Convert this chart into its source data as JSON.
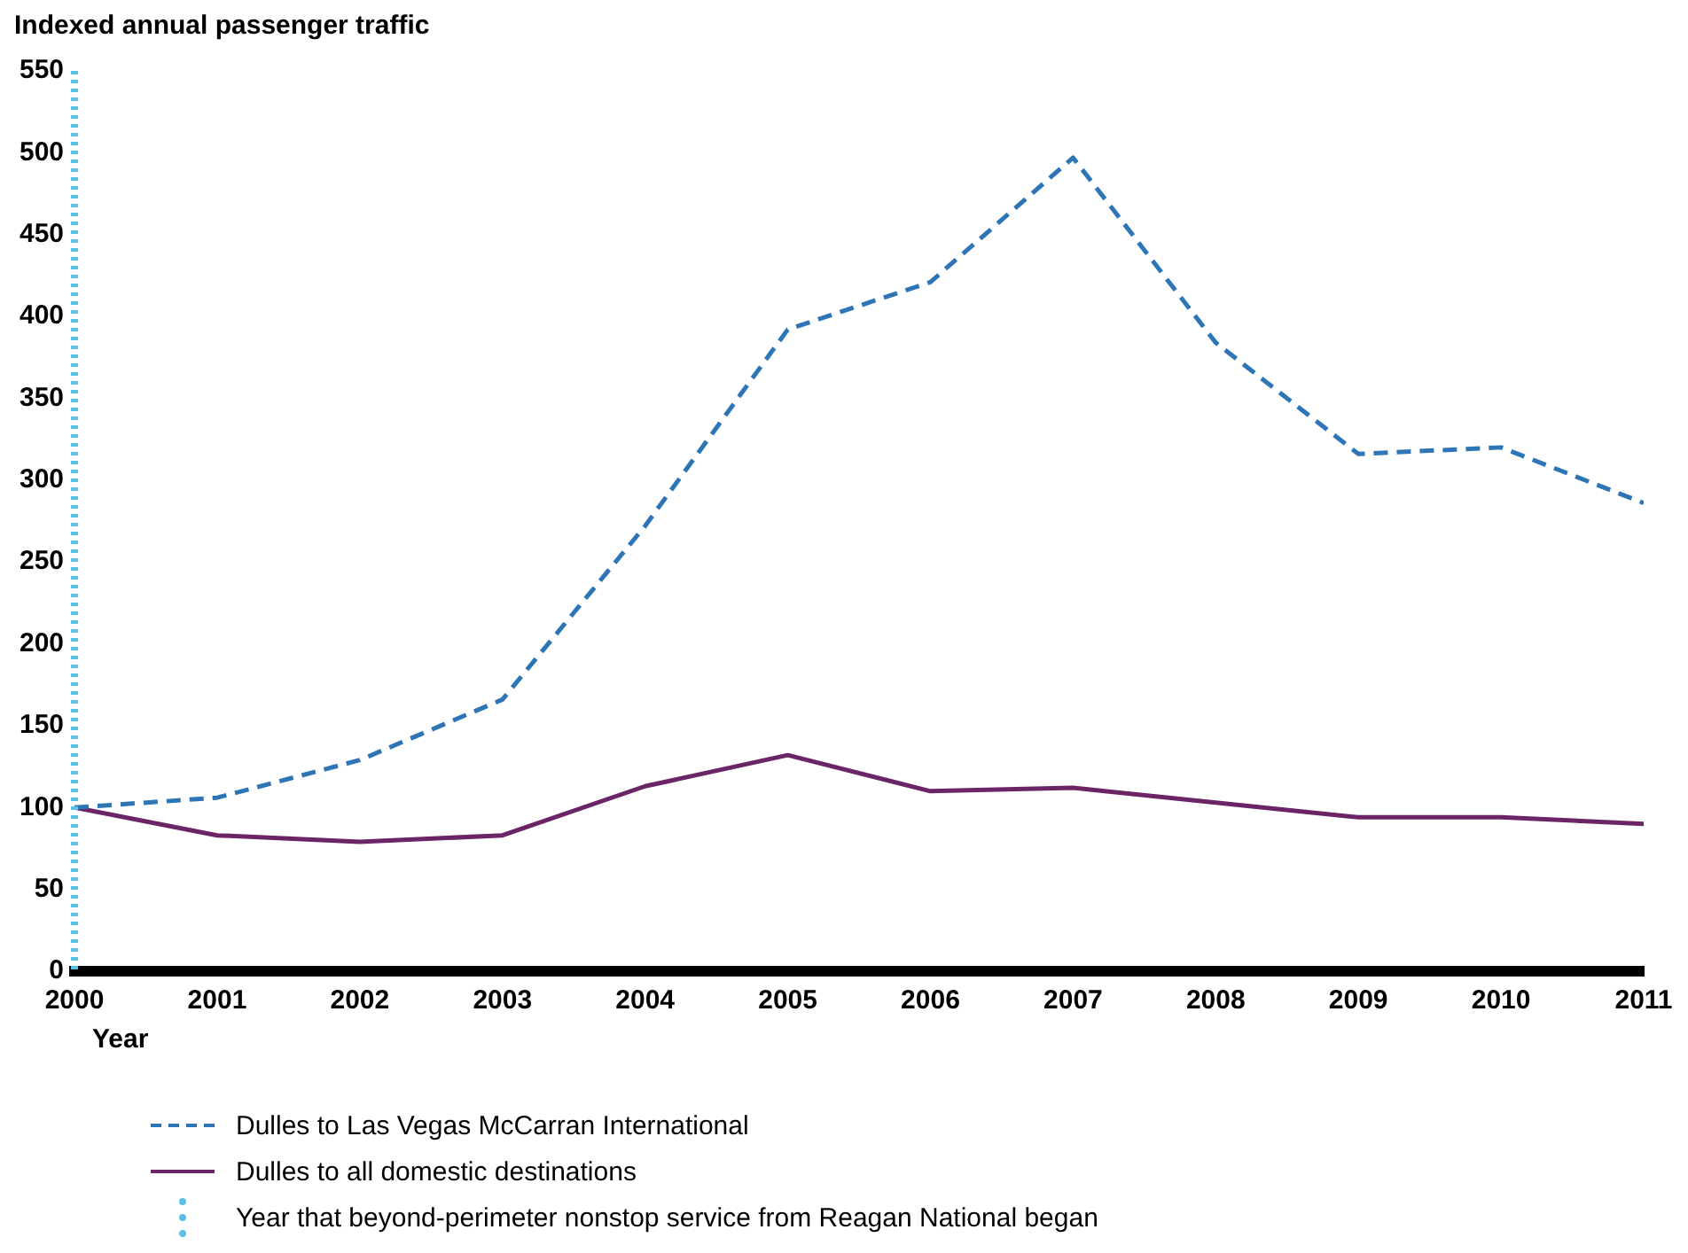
{
  "chart_data": {
    "type": "line",
    "ylabel": "Indexed annual passenger traffic",
    "xlabel": "Year",
    "x": [
      2000,
      2001,
      2002,
      2003,
      2004,
      2005,
      2006,
      2007,
      2008,
      2009,
      2010,
      2011
    ],
    "xlim": [
      2000,
      2011
    ],
    "xticks": [
      2000,
      2001,
      2002,
      2003,
      2004,
      2005,
      2006,
      2007,
      2008,
      2009,
      2010,
      2011
    ],
    "ylim": [
      0,
      550
    ],
    "yticks": [
      0,
      50,
      100,
      150,
      200,
      250,
      300,
      350,
      400,
      450,
      500,
      550
    ],
    "series": [
      {
        "name": "Dulles to Las Vegas McCarran International",
        "color": "#2e75b6",
        "line_style": "dashed",
        "values": [
          100,
          106,
          129,
          166,
          272,
          392,
          421,
          497,
          384,
          316,
          320,
          286
        ]
      },
      {
        "name": "Dulles to all domestic destinations",
        "color": "#6b2465",
        "line_style": "solid",
        "values": [
          100,
          83,
          79,
          83,
          113,
          132,
          110,
          112,
          103,
          94,
          94,
          90
        ]
      }
    ],
    "ref_lines": [
      {
        "axis": "x",
        "value": 2000,
        "label": "Year that beyond-perimeter nonstop service from Reagan National began",
        "color": "#5bc0e8",
        "line_style": "dotted"
      }
    ],
    "grid": false,
    "legend": "bottom",
    "marker": "none"
  }
}
